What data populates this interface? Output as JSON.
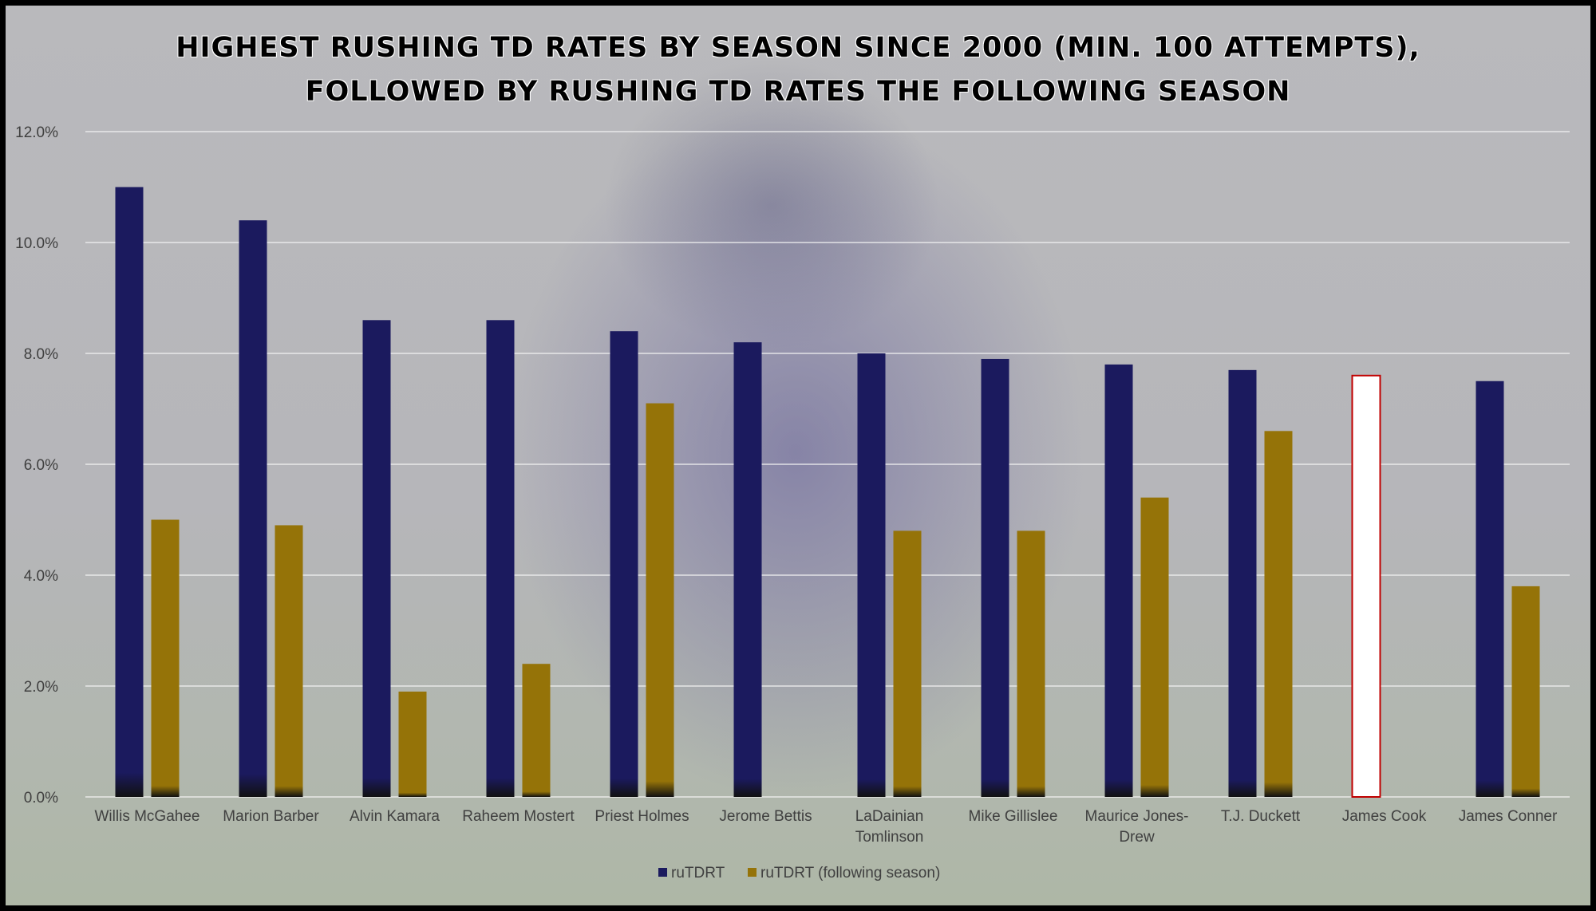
{
  "chart_data": {
    "type": "bar",
    "title_lines": [
      "Highest Rushing TD  Rates by Season Since 2000 (min. 100 attempts),",
      "Followed by Rushing TD Rates the Following Season"
    ],
    "categories": [
      "Willis McGahee",
      "Marion Barber",
      "Alvin Kamara",
      "Raheem Mostert",
      "Priest Holmes",
      "Jerome Bettis",
      "LaDainian Tomlinson",
      "Mike Gillislee",
      "Maurice Jones-Drew",
      "T.J. Duckett",
      "James Cook",
      "James Conner"
    ],
    "category_label_lines": [
      [
        "Willis McGahee"
      ],
      [
        "Marion Barber"
      ],
      [
        "Alvin Kamara"
      ],
      [
        "Raheem Mostert"
      ],
      [
        "Priest Holmes"
      ],
      [
        "Jerome Bettis"
      ],
      [
        "LaDainian",
        "Tomlinson"
      ],
      [
        "Mike Gillislee"
      ],
      [
        "Maurice Jones-",
        "Drew"
      ],
      [
        "T.J. Duckett"
      ],
      [
        "James Cook"
      ],
      [
        "James Conner"
      ]
    ],
    "series": [
      {
        "name": "ruTDRT",
        "values": [
          11.0,
          10.4,
          8.6,
          8.6,
          8.4,
          8.2,
          8.0,
          7.9,
          7.8,
          7.7,
          7.6,
          7.5
        ]
      },
      {
        "name": "ruTDRT (following season)",
        "values": [
          5.0,
          4.9,
          1.9,
          2.4,
          7.1,
          null,
          4.8,
          4.8,
          5.4,
          6.6,
          null,
          3.8
        ]
      }
    ],
    "highlight_category": "James Cook",
    "ylim": [
      0,
      12
    ],
    "yticks": [
      0,
      2,
      4,
      6,
      8,
      10,
      12
    ],
    "ytick_labels": [
      "0.0%",
      "2.0%",
      "4.0%",
      "6.0%",
      "8.0%",
      "10.0%",
      "12.0%"
    ],
    "grid": true,
    "legend_position": "bottom",
    "colors": {
      "series1": "#1b1a5e",
      "series2": "#957308",
      "highlight_fill": "#ffffff",
      "highlight_stroke": "#c00000",
      "gridline": "#f2f2f2"
    }
  }
}
